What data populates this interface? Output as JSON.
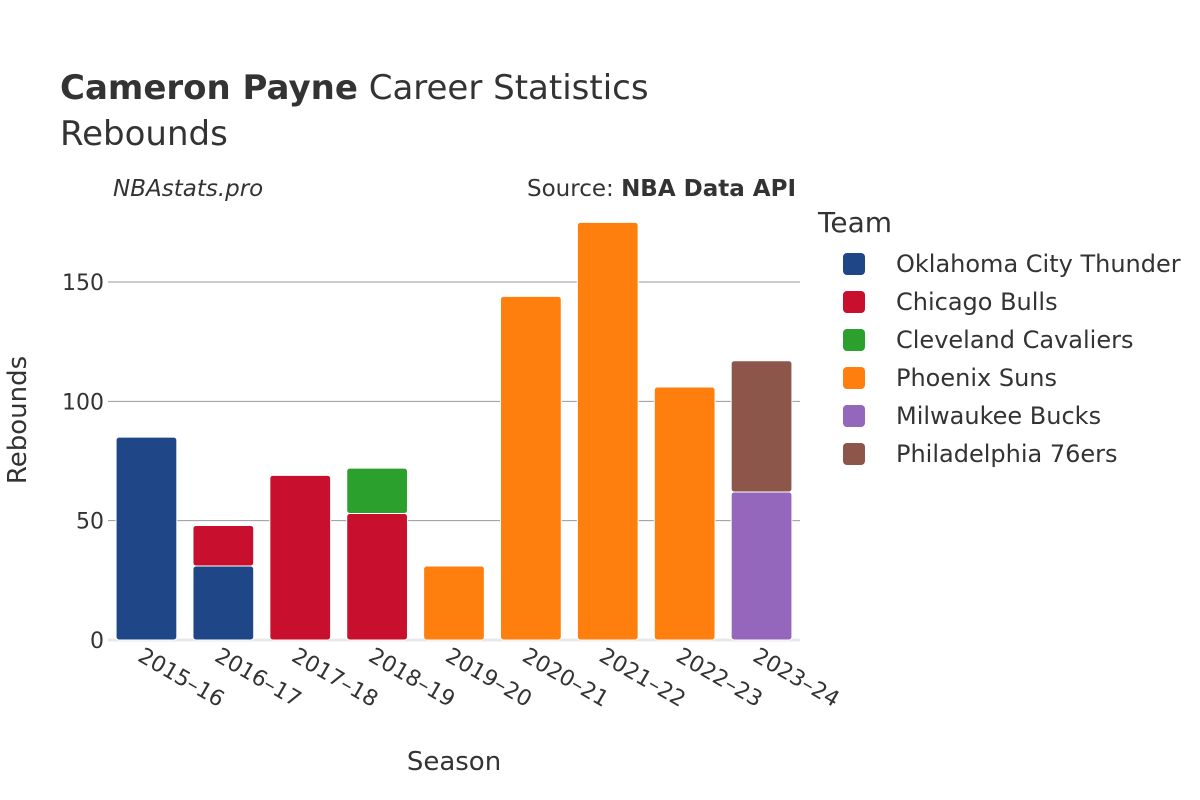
{
  "header": {
    "player_name": "Cameron Payne",
    "title_rest": "Career Statistics",
    "subtitle": "Rebounds"
  },
  "credits": {
    "site": "NBAstats.pro",
    "source_prefix": "Source: ",
    "source_name": "NBA Data API"
  },
  "legend": {
    "title": "Team"
  },
  "chart_data": {
    "type": "bar",
    "stacked": true,
    "xlabel": "Season",
    "ylabel": "Rebounds",
    "ylim": [
      0,
      180
    ],
    "yticks": [
      0,
      50,
      100,
      150
    ],
    "grid": true,
    "legend_placement": "right",
    "categories": [
      "2015–16",
      "2016–17",
      "2017–18",
      "2018–19",
      "2019–20",
      "2020–21",
      "2021–22",
      "2022–23",
      "2023–24"
    ],
    "series": [
      {
        "name": "Oklahoma City Thunder",
        "color": "#1f4788",
        "values": [
          85,
          31,
          0,
          0,
          0,
          0,
          0,
          0,
          0
        ]
      },
      {
        "name": "Chicago Bulls",
        "color": "#c8102e",
        "values": [
          0,
          17,
          69,
          53,
          0,
          0,
          0,
          0,
          0
        ]
      },
      {
        "name": "Cleveland Cavaliers",
        "color": "#2ca02c",
        "values": [
          0,
          0,
          0,
          19,
          0,
          0,
          0,
          0,
          0
        ]
      },
      {
        "name": "Phoenix Suns",
        "color": "#ff7f0e",
        "values": [
          0,
          0,
          0,
          0,
          31,
          144,
          175,
          106,
          0
        ]
      },
      {
        "name": "Milwaukee Bucks",
        "color": "#9467bd",
        "values": [
          0,
          0,
          0,
          0,
          0,
          0,
          0,
          0,
          62
        ]
      },
      {
        "name": "Philadelphia 76ers",
        "color": "#8c564b",
        "values": [
          0,
          0,
          0,
          0,
          0,
          0,
          0,
          0,
          55
        ]
      }
    ]
  }
}
